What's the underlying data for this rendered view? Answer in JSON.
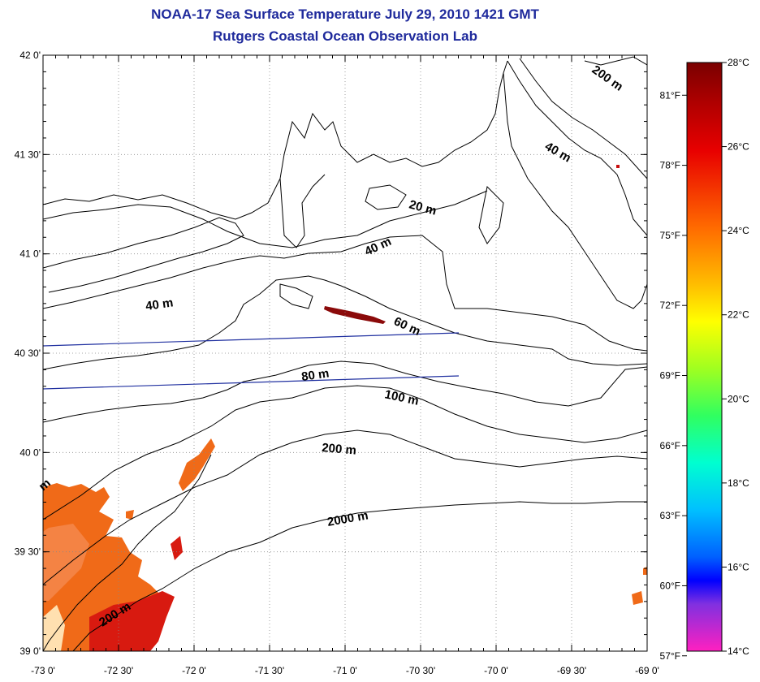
{
  "header": {
    "title": "NOAA-17 Sea Surface Temperature July 29, 2010 1421 GMT",
    "subtitle": "Rutgers Coastal Ocean Observation Lab"
  },
  "map": {
    "lon_range": [
      -73.0,
      -69.0
    ],
    "lat_range": [
      39.0,
      42.0
    ],
    "lon_ticks": [
      "-73 0'",
      "-72 30'",
      "-72 0'",
      "-71 30'",
      "-71 0'",
      "-70 30'",
      "-70 0'",
      "-69 30'",
      "-69 0'"
    ],
    "lat_ticks": [
      "39 0'",
      "39 30'",
      "40 0'",
      "40 30'",
      "41 0'",
      "41 30'",
      "42 0'"
    ],
    "grid": true,
    "depth_labels": [
      {
        "text": "200 m",
        "id": "d200a"
      },
      {
        "text": "40 m",
        "id": "d40a"
      },
      {
        "text": "20 m",
        "id": "d20"
      },
      {
        "text": "40 m",
        "id": "d40b"
      },
      {
        "text": "40 m",
        "id": "d40c"
      },
      {
        "text": "60 m",
        "id": "d60"
      },
      {
        "text": "80 m",
        "id": "d80"
      },
      {
        "text": "100 m",
        "id": "d100"
      },
      {
        "text": "200 m",
        "id": "d200b"
      },
      {
        "text": "2000 m",
        "id": "d2000"
      },
      {
        "text": "200 m",
        "id": "d200c"
      },
      {
        "text": "m",
        "id": "dm"
      }
    ],
    "land_color": "#ffffff",
    "coast_color": "#000000"
  },
  "colorbar": {
    "celsius_labels": [
      "28°C",
      "26°C",
      "24°C",
      "22°C",
      "20°C",
      "18°C",
      "16°C",
      "14°C"
    ],
    "fahrenheit_labels": [
      "81°F",
      "78°F",
      "75°F",
      "72°F",
      "69°F",
      "66°F",
      "63°F",
      "60°F",
      "57°F"
    ],
    "range_c": [
      14,
      28
    ]
  },
  "colors": {
    "title": "#1f2a9c",
    "sst_warm": "#e8401a",
    "sst_hot": "#c81010",
    "sst_orange": "#f06a18"
  }
}
